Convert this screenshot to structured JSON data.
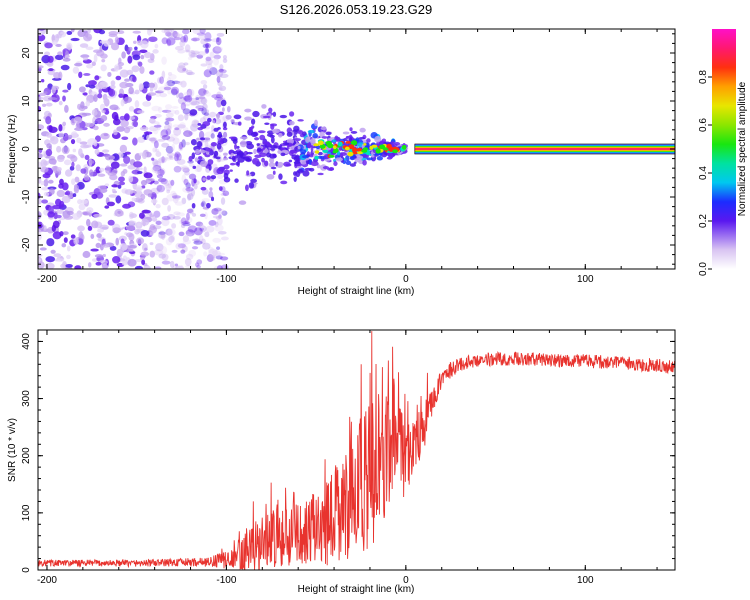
{
  "title": "S126.2026.053.19.23.G29",
  "chart_data": [
    {
      "type": "heatmap",
      "xlabel": "Height of straight line (km)",
      "ylabel": "Frequency (Hz)",
      "xlim": [
        -205,
        150
      ],
      "ylim": [
        -25,
        25
      ],
      "xticks": [
        -200,
        -100,
        0,
        100
      ],
      "yticks": [
        -20,
        -10,
        0,
        10,
        20
      ],
      "colorbar": {
        "label": "Normalized spectral amplitude",
        "range": [
          0,
          1
        ],
        "ticks": [
          "0.0",
          "0.2",
          "0.4",
          "0.6",
          "0.8"
        ],
        "tick_values": [
          0.0,
          0.2,
          0.4,
          0.6,
          0.8
        ]
      },
      "description": "Scattered low-amplitude (purple) spectral energy spanning all frequencies below about -120 km, converging toward 0 Hz between -100 and 0 km, and a single strong 0 Hz line (amplitude near 1.0) from about 5 km to 150 km.",
      "features": [
        {
          "name": "diffuse noise",
          "x_range": [
            -205,
            -120
          ],
          "freq_range": [
            -25,
            25
          ],
          "amplitude": 0.05
        },
        {
          "name": "converging cloud",
          "x_range": [
            -120,
            0
          ],
          "freq_range": [
            -12,
            12
          ],
          "amplitude": 0.2
        },
        {
          "name": "carrier line",
          "x_range": [
            5,
            150
          ],
          "freq": 0,
          "amplitude": 1.0
        }
      ]
    },
    {
      "type": "line",
      "xlabel": "Height of straight line (km)",
      "ylabel": "SNR (10 * v/v)",
      "xlim": [
        -205,
        150
      ],
      "ylim": [
        0,
        420
      ],
      "xticks": [
        -200,
        -100,
        0,
        100
      ],
      "yticks": [
        0,
        100,
        200,
        300,
        400
      ],
      "color": "#e8332e",
      "series": [
        {
          "name": "SNR",
          "x": [
            -205,
            -150,
            -110,
            -95,
            -85,
            -75,
            -65,
            -55,
            -45,
            -35,
            -25,
            -20,
            -15,
            -10,
            -5,
            0,
            5,
            10,
            15,
            20,
            25,
            30,
            40,
            60,
            80,
            100,
            120,
            140,
            150
          ],
          "mean": [
            12,
            12,
            14,
            20,
            40,
            55,
            62,
            70,
            85,
            110,
            150,
            170,
            200,
            215,
            210,
            200,
            215,
            250,
            300,
            335,
            350,
            360,
            368,
            370,
            368,
            366,
            362,
            358,
            355
          ],
          "spread": [
            6,
            6,
            8,
            20,
            45,
            55,
            50,
            55,
            70,
            90,
            120,
            130,
            120,
            110,
            100,
            70,
            50,
            40,
            25,
            18,
            14,
            12,
            12,
            12,
            12,
            12,
            12,
            12,
            12
          ]
        }
      ],
      "peaks": [
        {
          "x": -19,
          "y": 418
        },
        {
          "x": -25,
          "y": 360
        },
        {
          "x": -13,
          "y": 355
        },
        {
          "x": -20,
          "y": 345
        },
        {
          "x": 12,
          "y": 345
        }
      ]
    }
  ]
}
